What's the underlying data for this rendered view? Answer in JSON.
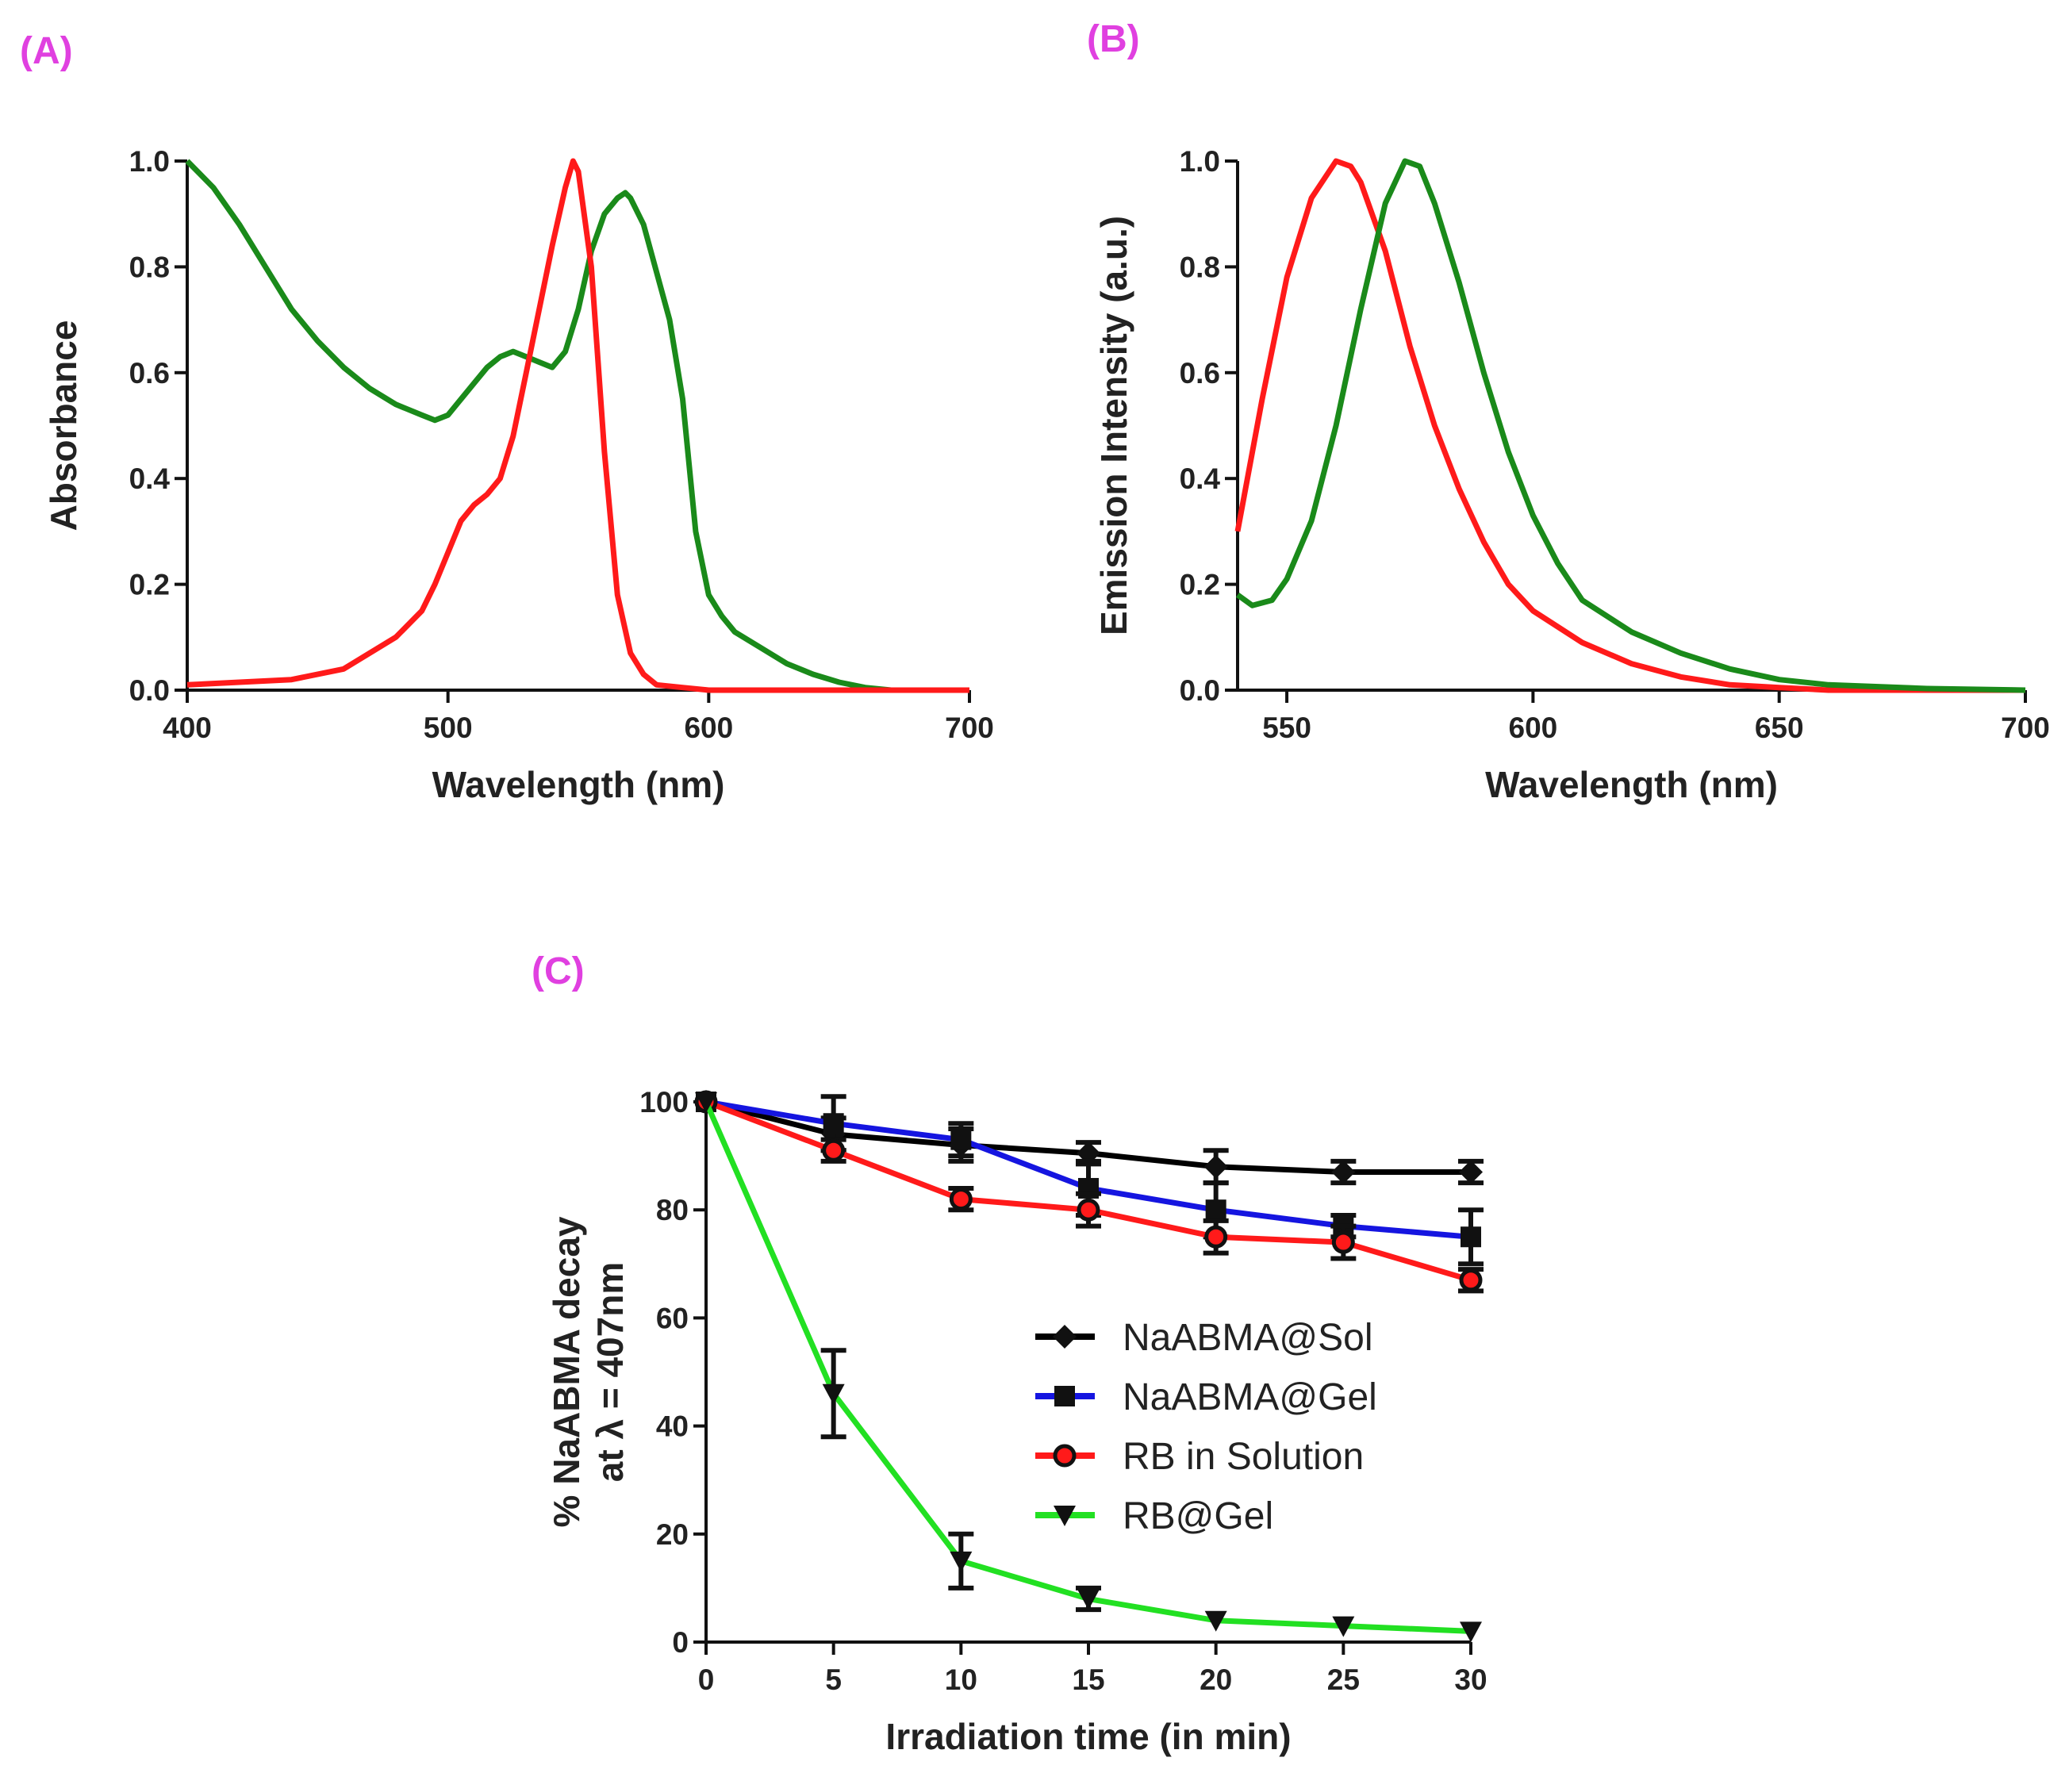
{
  "chart_data": [
    {
      "panel_label": "(A)",
      "type": "line",
      "xlabel": "Wavelength (nm)",
      "ylabel": "Absorbance",
      "xlim": [
        400,
        700
      ],
      "ylim": [
        0,
        1.0
      ],
      "xticks": [
        "400",
        "500",
        "600",
        "700"
      ],
      "yticks": [
        "0.0",
        "0.2",
        "0.4",
        "0.6",
        "0.8",
        "1.0"
      ],
      "grid": false,
      "series": [
        {
          "color": "#1a8a1a",
          "x": [
            400,
            410,
            420,
            430,
            440,
            450,
            460,
            470,
            480,
            490,
            495,
            500,
            505,
            510,
            515,
            520,
            525,
            530,
            535,
            540,
            545,
            550,
            555,
            560,
            565,
            568,
            570,
            575,
            580,
            585,
            590,
            595,
            600,
            605,
            610,
            620,
            630,
            640,
            650,
            660,
            670,
            700
          ],
          "y": [
            1.0,
            0.95,
            0.88,
            0.8,
            0.72,
            0.66,
            0.61,
            0.57,
            0.54,
            0.52,
            0.51,
            0.52,
            0.55,
            0.58,
            0.61,
            0.63,
            0.64,
            0.63,
            0.62,
            0.61,
            0.64,
            0.72,
            0.83,
            0.9,
            0.93,
            0.94,
            0.93,
            0.88,
            0.79,
            0.7,
            0.55,
            0.3,
            0.18,
            0.14,
            0.11,
            0.08,
            0.05,
            0.03,
            0.015,
            0.005,
            0,
            0
          ]
        },
        {
          "color": "#ff1a1a",
          "x": [
            400,
            440,
            460,
            480,
            490,
            495,
            500,
            505,
            510,
            515,
            520,
            525,
            530,
            535,
            540,
            545,
            548,
            550,
            555,
            560,
            565,
            570,
            575,
            580,
            590,
            600,
            700
          ],
          "y": [
            0.01,
            0.02,
            0.04,
            0.1,
            0.15,
            0.2,
            0.26,
            0.32,
            0.35,
            0.37,
            0.4,
            0.48,
            0.6,
            0.72,
            0.84,
            0.95,
            1.0,
            0.98,
            0.8,
            0.45,
            0.18,
            0.07,
            0.03,
            0.01,
            0.005,
            0,
            0
          ]
        }
      ]
    },
    {
      "panel_label": "(B)",
      "type": "line",
      "xlabel": "Wavelength (nm)",
      "ylabel": "Emission Intensity (a.u.)",
      "xlim": [
        540,
        700
      ],
      "ylim": [
        0,
        1.0
      ],
      "xticks": [
        "550",
        "600",
        "650",
        "700"
      ],
      "xtick_values": [
        550,
        600,
        650,
        700
      ],
      "yticks": [
        "0.0",
        "0.2",
        "0.4",
        "0.6",
        "0.8",
        "1.0"
      ],
      "grid": false,
      "series": [
        {
          "color": "#ff1a1a",
          "x": [
            540,
            545,
            550,
            555,
            560,
            563,
            565,
            570,
            575,
            580,
            585,
            590,
            595,
            600,
            610,
            620,
            630,
            640,
            650,
            660,
            700
          ],
          "y": [
            0.3,
            0.55,
            0.78,
            0.93,
            1.0,
            0.99,
            0.96,
            0.83,
            0.65,
            0.5,
            0.38,
            0.28,
            0.2,
            0.15,
            0.09,
            0.05,
            0.025,
            0.01,
            0.005,
            0,
            0
          ]
        },
        {
          "color": "#1a8a1a",
          "x": [
            540,
            543,
            547,
            550,
            555,
            560,
            565,
            570,
            574,
            577,
            580,
            585,
            590,
            595,
            600,
            605,
            610,
            620,
            630,
            640,
            650,
            660,
            680,
            700
          ],
          "y": [
            0.18,
            0.16,
            0.17,
            0.21,
            0.32,
            0.5,
            0.72,
            0.92,
            1.0,
            0.99,
            0.92,
            0.77,
            0.6,
            0.45,
            0.33,
            0.24,
            0.17,
            0.11,
            0.07,
            0.04,
            0.02,
            0.01,
            0.003,
            0
          ]
        }
      ]
    },
    {
      "panel_label": "(C)",
      "type": "line",
      "xlabel": "Irradiation time (in min)",
      "ylabel_line1": "% NaABMA decay",
      "ylabel_line2": "at λ = 407nm",
      "xlim": [
        0,
        30
      ],
      "ylim": [
        0,
        100
      ],
      "xticks": [
        "0",
        "5",
        "10",
        "15",
        "20",
        "25",
        "30"
      ],
      "yticks": [
        "0",
        "20",
        "40",
        "60",
        "80",
        "100"
      ],
      "grid": false,
      "legend": "center-right",
      "x": [
        0,
        5,
        10,
        15,
        20,
        25,
        30
      ],
      "series": [
        {
          "name": "NaABMA@Sol",
          "color": "#000000",
          "marker": "diamond",
          "values": [
            100,
            94,
            92,
            90.5,
            88,
            87,
            87
          ],
          "errors": [
            0,
            3,
            3,
            2,
            3,
            2,
            2
          ]
        },
        {
          "name": "NaABMA@Gel",
          "color": "#1515e0",
          "marker": "square",
          "values": [
            100,
            96,
            93,
            84,
            80,
            77,
            75
          ],
          "errors": [
            0,
            5,
            3,
            5,
            5,
            2,
            5
          ]
        },
        {
          "name": "RB in Solution",
          "color": "#ff1a1a",
          "marker": "circle",
          "values": [
            100,
            91,
            82,
            80,
            75,
            74,
            67
          ],
          "errors": [
            0,
            2,
            2,
            3,
            3,
            3,
            2
          ]
        },
        {
          "name": "RB@Gel",
          "color": "#22e022",
          "marker": "triangle-down",
          "values": [
            100,
            46,
            15,
            8,
            4,
            3,
            2
          ],
          "errors": [
            0,
            8,
            5,
            2,
            0,
            0,
            0
          ]
        }
      ]
    }
  ]
}
